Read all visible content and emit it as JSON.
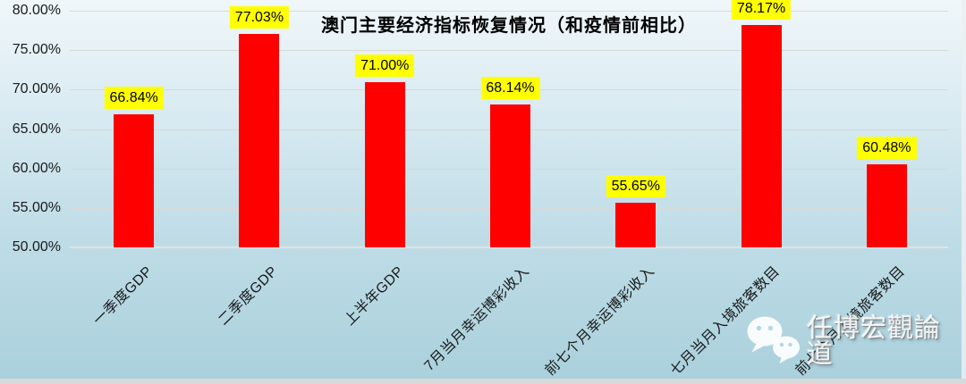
{
  "chart_data": {
    "type": "bar",
    "title": "澳门主要经济指标恢复情况（和疫情前相比）",
    "categories": [
      "一季度GDP",
      "二季度GDP",
      "上半年GDP",
      "7月当月幸运博彩收入",
      "前七个月幸运博彩收入",
      "七月当月入境旅客数目",
      "前七个月入境旅客数目"
    ],
    "values": [
      66.84,
      77.03,
      71.0,
      68.14,
      55.65,
      78.17,
      60.48
    ],
    "data_labels": [
      "66.84%",
      "77.03%",
      "71.00%",
      "68.14%",
      "55.65%",
      "78.17%",
      "60.48%"
    ],
    "xlabel": "",
    "ylabel": "",
    "ylim": [
      50,
      80
    ],
    "yticks": [
      50,
      55,
      60,
      65,
      70,
      75,
      80
    ],
    "ytick_labels": [
      "50.00%",
      "55.00%",
      "60.00%",
      "65.00%",
      "70.00%",
      "75.00%",
      "80.00%"
    ],
    "grid": true,
    "legend": null,
    "bar_color": "#ff0000",
    "data_label_bg": "#ffff00",
    "data_label_color": "#000000"
  },
  "watermark": {
    "icon": "wechat-icon",
    "text": "任博宏觀論道"
  },
  "colors": {
    "bg_gradient_top": "#f0f7fa",
    "bg_gradient_bottom": "#a9d0dc",
    "gridline": "#d9d9d9",
    "axis_text": "#1a1a1a",
    "title": "#000000",
    "bottom_strip": "#d9d9d9"
  }
}
